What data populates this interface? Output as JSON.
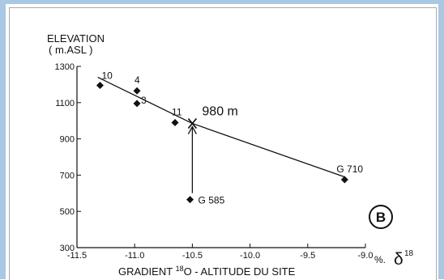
{
  "chart_data": {
    "type": "scatter",
    "ylabel_line1": "ELEVATION",
    "ylabel_line2": "( m.ASL )",
    "xlabel_prefix": "GRADIENT ",
    "xlabel_sup": "18",
    "xlabel_main": "O - ALTITUDE DU SITE",
    "x_unit": "%.",
    "x_unit_symbol": "δ",
    "x_unit_sup": "18",
    "xlim": [
      -11.5,
      -9.0
    ],
    "ylim": [
      300,
      1300
    ],
    "x_ticks": [
      {
        "value": -11.5,
        "label": "-11.5"
      },
      {
        "value": -11.0,
        "label": "-11.0"
      },
      {
        "value": -10.5,
        "label": "-10.5"
      },
      {
        "value": -10.0,
        "label": "-10.0"
      },
      {
        "value": -9.5,
        "label": "-9.5"
      },
      {
        "value": -9.0,
        "label": "-9.0"
      }
    ],
    "y_ticks": [
      {
        "value": 300,
        "label": "300"
      },
      {
        "value": 500,
        "label": "500"
      },
      {
        "value": 700,
        "label": "700"
      },
      {
        "value": 900,
        "label": "900"
      },
      {
        "value": 1100,
        "label": "1100"
      },
      {
        "value": 1300,
        "label": "1300"
      }
    ],
    "points": [
      {
        "label": "10",
        "x": -11.3,
        "y": 1195
      },
      {
        "label": "4",
        "x": -10.98,
        "y": 1165
      },
      {
        "label": "3",
        "x": -10.98,
        "y": 1095
      },
      {
        "label": "11",
        "x": -10.65,
        "y": 990
      },
      {
        "label": "G 585",
        "x": -10.52,
        "y": 565
      },
      {
        "label": "G 710",
        "x": -9.18,
        "y": 675
      }
    ],
    "fit_line": [
      {
        "x": -11.32,
        "y": 1240
      },
      {
        "x": -10.5,
        "y": 985
      },
      {
        "x": -9.18,
        "y": 690
      }
    ],
    "marker": {
      "label": "980 m",
      "x": -10.5,
      "y": 985
    },
    "arrow": {
      "from": {
        "x": -10.5,
        "y": 565
      },
      "to": {
        "x": -10.5,
        "y": 985
      }
    },
    "panel_label": "B"
  }
}
